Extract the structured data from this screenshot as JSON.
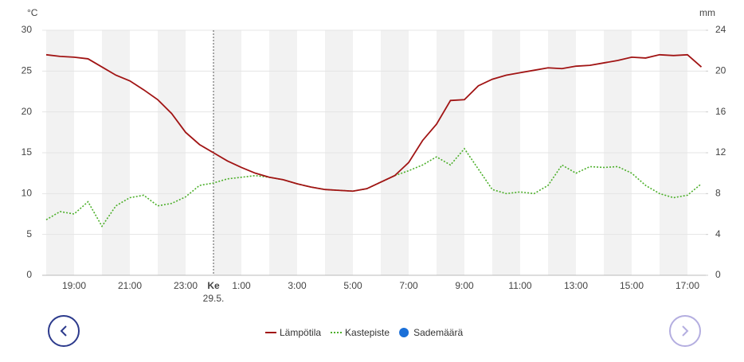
{
  "chart_data": {
    "type": "line",
    "y_label": "°C",
    "y2_label": "mm",
    "x": [
      null,
      null,
      "19:00",
      null,
      null,
      null,
      "21:00",
      null,
      null,
      null,
      "23:00",
      null,
      "Ke",
      null,
      "1:00",
      null,
      null,
      null,
      "3:00",
      null,
      null,
      null,
      "5:00",
      null,
      null,
      null,
      "7:00",
      null,
      null,
      null,
      "9:00",
      null,
      null,
      null,
      "11:00",
      null,
      null,
      null,
      "13:00",
      null,
      null,
      null,
      "15:00",
      null,
      null,
      null,
      "17:00",
      null
    ],
    "date": "29.5.",
    "ylim": [
      0,
      30
    ],
    "yticks": [
      0,
      5,
      10,
      15,
      20,
      25,
      30
    ],
    "y2lim": [
      0,
      24
    ],
    "y2ticks": [
      0,
      4,
      8,
      12,
      16,
      20,
      24
    ],
    "grid": true,
    "series": [
      {
        "name": "Lämpötila",
        "color": "#a11414",
        "style": "solid",
        "values": [
          27.0,
          26.8,
          26.7,
          26.5,
          25.5,
          24.5,
          23.8,
          22.7,
          21.5,
          19.8,
          17.5,
          16.0,
          15.0,
          14.0,
          13.2,
          12.5,
          12.0,
          11.7,
          11.2,
          10.8,
          10.5,
          10.4,
          10.3,
          10.6,
          11.4,
          12.2,
          13.8,
          16.5,
          18.5,
          21.4,
          21.5,
          23.2,
          24.0,
          24.5,
          24.8,
          25.1,
          25.4,
          25.3,
          25.6,
          25.7,
          26.0,
          26.3,
          26.7,
          26.6,
          27.0,
          26.9,
          27.0,
          25.5
        ]
      },
      {
        "name": "Kastepiste",
        "color": "#4caf2a",
        "style": "dotted",
        "values": [
          6.8,
          7.8,
          7.5,
          9.0,
          6.0,
          8.5,
          9.5,
          9.8,
          8.5,
          8.8,
          9.6,
          11.0,
          11.3,
          11.8,
          12.0,
          12.2,
          12.0,
          11.7,
          11.2,
          10.8,
          10.5,
          10.4,
          10.3,
          10.6,
          11.4,
          12.2,
          12.8,
          13.5,
          14.5,
          13.5,
          15.5,
          13.0,
          10.5,
          10.0,
          10.2,
          10.0,
          11.0,
          13.5,
          12.5,
          13.3,
          13.2,
          13.3,
          12.5,
          11.0,
          10.0,
          9.5,
          9.8,
          11.2
        ]
      },
      {
        "name": "Sademäärä",
        "color": "#1a6fd8",
        "style": "bar",
        "axis": "y2",
        "values": [
          0,
          0,
          0,
          0,
          0,
          0,
          0,
          0,
          0,
          0,
          0,
          0,
          0,
          0,
          0,
          0,
          0,
          0,
          0,
          0,
          0,
          0,
          0,
          0,
          0,
          0,
          0,
          0,
          0,
          0,
          0,
          0,
          0,
          0,
          0,
          0,
          0,
          0,
          0,
          0,
          0,
          0,
          0,
          0,
          0,
          0,
          0,
          0
        ]
      }
    ]
  }
}
